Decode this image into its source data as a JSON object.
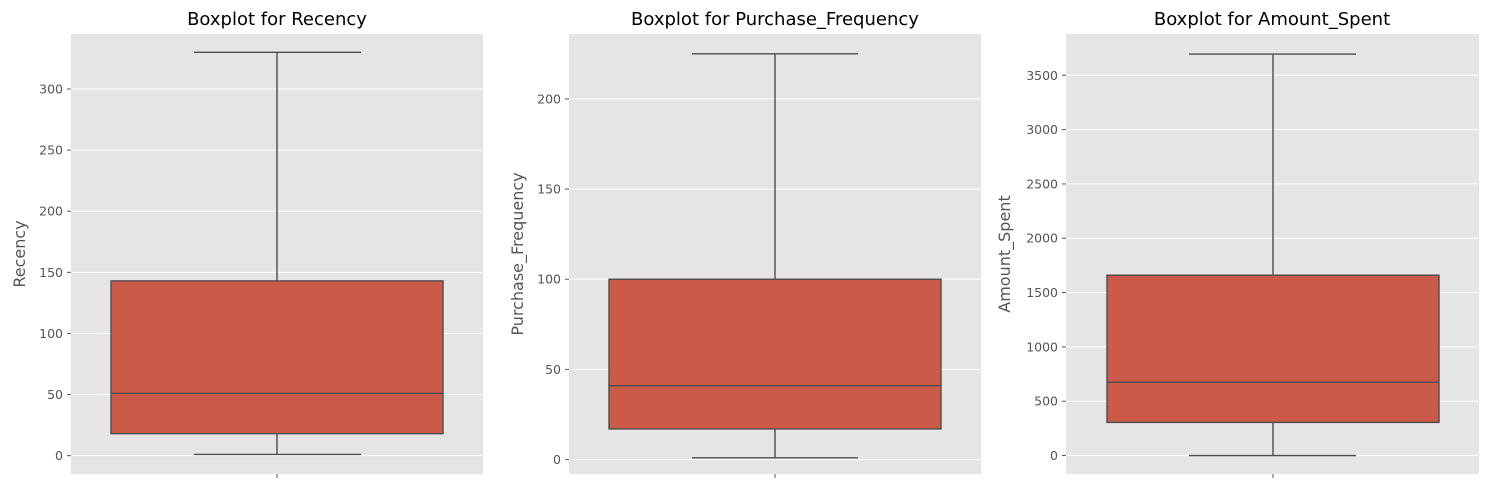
{
  "chart_data": [
    {
      "type": "boxplot",
      "title": "Boxplot for Recency",
      "ylabel": "Recency",
      "ylim": [
        -15,
        345
      ],
      "yticks": [
        0,
        50,
        100,
        150,
        200,
        250,
        300
      ],
      "ytick_labels": [
        "0",
        "50",
        "100",
        "150",
        "200",
        "250",
        "300"
      ],
      "grid": true,
      "stats": {
        "min": 1,
        "q1": 18,
        "median": 51,
        "q3": 143,
        "max": 330
      }
    },
    {
      "type": "boxplot",
      "title": "Boxplot for Purchase_Frequency",
      "ylabel": "Purchase_Frequency",
      "ylim": [
        -8,
        236
      ],
      "yticks": [
        0,
        50,
        100,
        150,
        200
      ],
      "ytick_labels": [
        "0",
        "50",
        "100",
        "150",
        "200"
      ],
      "grid": true,
      "stats": {
        "min": 1,
        "q1": 17,
        "median": 41,
        "q3": 100,
        "max": 225
      }
    },
    {
      "type": "boxplot",
      "title": "Boxplot for Amount_Spent",
      "ylabel": "Amount_Spent",
      "ylim": [
        -170,
        3880
      ],
      "yticks": [
        0,
        500,
        1000,
        1500,
        2000,
        2500,
        3000,
        3500
      ],
      "ytick_labels": [
        "0",
        "500",
        "1000",
        "1500",
        "2000",
        "2500",
        "3000",
        "3500"
      ],
      "grid": true,
      "stats": {
        "min": 0,
        "q1": 305,
        "median": 675,
        "q3": 1660,
        "max": 3695
      }
    }
  ],
  "colors": {
    "box_fill": "#cb5a49",
    "line": "#4d4d4d",
    "panel_background": "#e5e5e5",
    "grid": "#ffffff",
    "tick_text": "#555555",
    "title_text": "#000000"
  }
}
